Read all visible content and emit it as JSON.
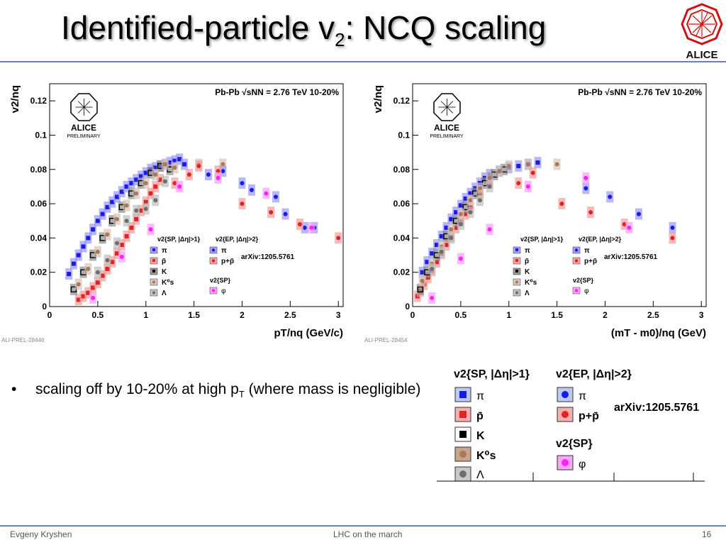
{
  "slide": {
    "title_main": "Identified-particle v",
    "title_sub": "2",
    "title_rest": ": NCQ scaling",
    "logo_text": "ALICE",
    "bullet": "scaling off by 10-20% at high p",
    "bullet_sub": "T",
    "bullet_rest": " (where mass is negligible)",
    "footer_left": "Evgeny Kryshen",
    "footer_center": "LHC on the march",
    "footer_right": "16"
  },
  "legend_big": {
    "col1_title": "v2{SP, |Δη|>1}",
    "col2_title": "v2{EP, |Δη|>2}",
    "col2b_title": "v2{SP}",
    "arxiv": "arXiv:1205.5761",
    "items_left": [
      "π",
      "p̄",
      "K",
      "K⁰s",
      "Λ"
    ],
    "items_right": [
      "π",
      "p+p̄"
    ],
    "items_right_b": [
      "φ"
    ]
  },
  "colors": {
    "pi": "#1a1aee",
    "pbar": "#e52222",
    "K": "#000000",
    "K0s": "#a77a5c",
    "Lambda": "#6e6e6e",
    "phi": "#ff22ff",
    "accent": "#5b86c4"
  },
  "chart_data": [
    {
      "type": "scatter",
      "header": "Pb-Pb √sNN = 2.76 TeV 10-20%",
      "logo": "ALICE",
      "logo_sub": "PRELIMINARY",
      "tag": "ALI-PREL-28446",
      "xlabel": "pT/nq (GeV/c)",
      "ylabel": "v2/nq",
      "xlim": [
        0,
        3.05
      ],
      "ylim": [
        0,
        0.13
      ],
      "xticks": [
        0,
        0.5,
        1,
        1.5,
        2,
        2.5,
        3
      ],
      "yticks": [
        0,
        0.02,
        0.04,
        0.06,
        0.08,
        0.1,
        0.12
      ],
      "legend": {
        "col1_title": "v2{SP, |Δη|>1}",
        "col2_title": "v2{EP, |Δη|>2}",
        "col2b_title": "v2{SP}",
        "items_left": [
          "π",
          "p̄",
          "K",
          "K⁰s",
          "Λ"
        ],
        "items_right": [
          "π",
          "p+p̄"
        ],
        "items_right_b": [
          "φ"
        ],
        "arxiv": "arXiv:1205.5761"
      },
      "series": [
        {
          "name": "π SP",
          "kind": "sq",
          "color": "#1a1aee",
          "x": [
            0.2,
            0.25,
            0.3,
            0.35,
            0.4,
            0.45,
            0.5,
            0.55,
            0.6,
            0.65,
            0.7,
            0.75,
            0.8,
            0.85,
            0.9,
            0.95,
            1.0,
            1.05,
            1.1,
            1.15,
            1.2,
            1.25,
            1.3,
            1.35,
            1.4
          ],
          "y": [
            0.019,
            0.025,
            0.03,
            0.035,
            0.04,
            0.045,
            0.05,
            0.054,
            0.058,
            0.061,
            0.064,
            0.067,
            0.07,
            0.072,
            0.074,
            0.076,
            0.078,
            0.08,
            0.081,
            0.082,
            0.083,
            0.084,
            0.085,
            0.086,
            0.083
          ]
        },
        {
          "name": "p̄ SP",
          "kind": "sq",
          "color": "#e52222",
          "x": [
            0.3,
            0.35,
            0.4,
            0.45,
            0.5,
            0.55,
            0.6,
            0.65,
            0.7,
            0.75,
            0.8,
            0.85,
            0.9,
            0.95,
            1.0,
            1.05,
            1.1,
            1.15
          ],
          "y": [
            0.004,
            0.006,
            0.008,
            0.011,
            0.014,
            0.018,
            0.022,
            0.026,
            0.031,
            0.036,
            0.041,
            0.046,
            0.051,
            0.056,
            0.061,
            0.066,
            0.07,
            0.074
          ]
        },
        {
          "name": "K SP",
          "kind": "osq",
          "color": "#000000",
          "x": [
            0.25,
            0.35,
            0.45,
            0.55,
            0.65,
            0.75,
            0.85,
            0.95,
            1.05,
            1.15,
            1.25
          ],
          "y": [
            0.01,
            0.02,
            0.03,
            0.04,
            0.05,
            0.058,
            0.066,
            0.072,
            0.078,
            0.082,
            0.08
          ]
        },
        {
          "name": "K0s SP",
          "kind": "cir",
          "color": "#a77a5c",
          "x": [
            0.3,
            0.4,
            0.5,
            0.6,
            0.7,
            0.8,
            0.9,
            1.0,
            1.1,
            1.2,
            1.3,
            1.55,
            1.8
          ],
          "y": [
            0.013,
            0.022,
            0.032,
            0.042,
            0.051,
            0.059,
            0.066,
            0.072,
            0.077,
            0.083,
            0.081,
            0.083,
            0.083
          ]
        },
        {
          "name": "Λ SP",
          "kind": "cir",
          "color": "#6e6e6e",
          "x": [
            0.5,
            0.6,
            0.7,
            0.8,
            0.9,
            1.0,
            1.1,
            1.2
          ],
          "y": [
            0.02,
            0.027,
            0.037,
            0.05,
            0.056,
            0.057,
            0.062,
            0.073
          ]
        },
        {
          "name": "π EP",
          "kind": "cir",
          "color": "#1a1aee",
          "x": [
            1.65,
            1.8,
            2.0,
            2.1,
            2.35,
            2.45,
            2.65,
            2.75
          ],
          "y": [
            0.077,
            0.079,
            0.072,
            0.068,
            0.064,
            0.054,
            0.046,
            0.046
          ]
        },
        {
          "name": "p+p̄ EP",
          "kind": "cir",
          "color": "#e52222",
          "x": [
            1.3,
            1.45,
            1.55,
            1.75,
            2.0,
            2.3,
            2.6,
            3.0
          ],
          "y": [
            0.072,
            0.077,
            0.082,
            0.079,
            0.06,
            0.055,
            0.048,
            0.04
          ]
        },
        {
          "name": "φ SP",
          "kind": "cir",
          "color": "#ff22ff",
          "x": [
            0.45,
            0.75,
            1.05,
            1.35,
            1.75,
            2.25,
            2.72
          ],
          "y": [
            0.005,
            0.029,
            0.045,
            0.07,
            0.075,
            0.066,
            0.046
          ]
        }
      ]
    },
    {
      "type": "scatter",
      "header": "Pb-Pb √sNN = 2.76 TeV 10-20%",
      "logo": "ALICE",
      "logo_sub": "PRELIMINARY",
      "tag": "ALI-PREL-28454",
      "xlabel": "(mT - m0)/nq (GeV)",
      "ylabel": "v2/nq",
      "xlim": [
        0,
        3.05
      ],
      "ylim": [
        0,
        0.13
      ],
      "xticks": [
        0,
        0.5,
        1,
        1.5,
        2,
        2.5,
        3
      ],
      "yticks": [
        0,
        0.02,
        0.04,
        0.06,
        0.08,
        0.1,
        0.12
      ],
      "legend": {
        "col1_title": "v2{SP, |Δη|>1}",
        "col2_title": "v2{EP, |Δη|>2}",
        "col2b_title": "v2{SP}",
        "items_left": [
          "π",
          "p̄",
          "K",
          "K⁰s",
          "Λ"
        ],
        "items_right": [
          "π",
          "p+p̄"
        ],
        "items_right_b": [
          "φ"
        ],
        "arxiv": "arXiv:1205.5761"
      },
      "series": [
        {
          "name": "π SP",
          "kind": "sq",
          "color": "#1a1aee",
          "x": [
            0.1,
            0.15,
            0.2,
            0.25,
            0.3,
            0.35,
            0.4,
            0.45,
            0.5,
            0.55,
            0.6,
            0.65,
            0.7,
            0.75,
            0.8,
            0.9,
            1.0,
            1.1,
            1.2,
            1.3
          ],
          "y": [
            0.02,
            0.026,
            0.031,
            0.036,
            0.041,
            0.046,
            0.051,
            0.055,
            0.059,
            0.063,
            0.066,
            0.069,
            0.072,
            0.075,
            0.077,
            0.079,
            0.081,
            0.082,
            0.083,
            0.084
          ]
        },
        {
          "name": "p̄ SP",
          "kind": "sq",
          "color": "#e52222",
          "x": [
            0.05,
            0.08,
            0.12,
            0.16,
            0.2,
            0.25,
            0.3,
            0.35,
            0.4,
            0.45,
            0.5,
            0.55,
            0.6,
            0.7,
            0.8
          ],
          "y": [
            0.006,
            0.009,
            0.013,
            0.017,
            0.021,
            0.026,
            0.031,
            0.036,
            0.041,
            0.046,
            0.05,
            0.054,
            0.058,
            0.066,
            0.072
          ]
        },
        {
          "name": "K SP",
          "kind": "osq",
          "color": "#000000",
          "x": [
            0.08,
            0.15,
            0.25,
            0.35,
            0.45,
            0.55,
            0.65,
            0.75,
            0.85,
            0.95
          ],
          "y": [
            0.01,
            0.02,
            0.03,
            0.041,
            0.05,
            0.058,
            0.066,
            0.072,
            0.077,
            0.08
          ]
        },
        {
          "name": "K0s SP",
          "kind": "cir",
          "color": "#a77a5c",
          "x": [
            0.1,
            0.2,
            0.3,
            0.4,
            0.5,
            0.6,
            0.7,
            0.8,
            0.9,
            1.0,
            1.2,
            1.5
          ],
          "y": [
            0.015,
            0.025,
            0.035,
            0.045,
            0.054,
            0.062,
            0.069,
            0.075,
            0.079,
            0.082,
            0.083,
            0.083
          ]
        },
        {
          "name": "Λ SP",
          "kind": "cir",
          "color": "#6e6e6e",
          "x": [
            0.2,
            0.3,
            0.4,
            0.5,
            0.6,
            0.7,
            0.8
          ],
          "y": [
            0.022,
            0.032,
            0.04,
            0.048,
            0.055,
            0.062,
            0.07
          ]
        },
        {
          "name": "π EP",
          "kind": "cir",
          "color": "#1a1aee",
          "x": [
            1.8,
            2.05,
            2.35,
            2.7
          ],
          "y": [
            0.069,
            0.064,
            0.054,
            0.046
          ]
        },
        {
          "name": "p+p̄ EP",
          "kind": "cir",
          "color": "#e52222",
          "x": [
            1.1,
            1.25,
            1.55,
            1.85,
            2.2,
            2.7
          ],
          "y": [
            0.072,
            0.078,
            0.06,
            0.055,
            0.048,
            0.04
          ]
        },
        {
          "name": "φ SP",
          "kind": "cir",
          "color": "#ff22ff",
          "x": [
            0.2,
            0.5,
            0.8,
            1.2,
            1.8,
            2.25
          ],
          "y": [
            0.005,
            0.028,
            0.045,
            0.07,
            0.075,
            0.046
          ]
        }
      ]
    }
  ]
}
